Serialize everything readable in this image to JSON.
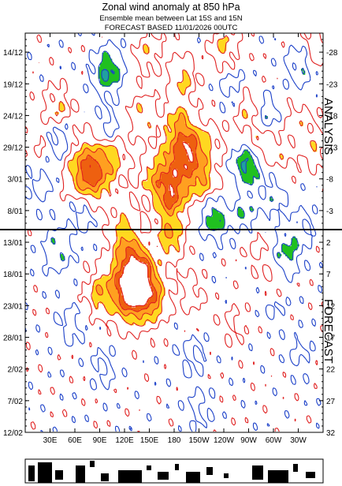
{
  "header": {
    "title": "Zonal wind anomaly at 850 hPa",
    "subtitle": "Ensemble mean between  Lat 15S and 15N",
    "forecast_line": "FORECAST  BASED 11/01/2026 00UTC"
  },
  "chart_data": {
    "type": "heatmap",
    "title": "Zonal wind anomaly at 850 hPa",
    "x_ticks": [
      "30E",
      "60E",
      "90E",
      "120E",
      "150E",
      "180",
      "150W",
      "120W",
      "90W",
      "60W",
      "30W"
    ],
    "x_tick_lon": [
      30,
      60,
      90,
      120,
      150,
      180,
      210,
      240,
      270,
      300,
      330
    ],
    "xlim": [
      0,
      360
    ],
    "y_ticks_left": [
      "14/12",
      "19/12",
      "24/12",
      "29/12",
      "3/01",
      "8/01",
      "13/01",
      "18/01",
      "23/01",
      "28/01",
      "2/02",
      "7/02",
      "12/02"
    ],
    "y_ticks_right": [
      "-28",
      "-23",
      "-18",
      "-13",
      "-8",
      "-3",
      "2",
      "7",
      "12",
      "17",
      "22",
      "27",
      "32"
    ],
    "ylim_days": [
      -31,
      32
    ],
    "forecast_start_day": 0,
    "section_labels": {
      "analysis": "ANALYSIS",
      "forecast": "FORECAST"
    },
    "contour_levels_positive": [
      1,
      3,
      5,
      7,
      9
    ],
    "contour_levels_negative": [
      -1,
      -3,
      -5
    ],
    "colors": {
      "pos_contour": "#e02020",
      "neg_contour": "#1a3fc8",
      "fill_3": "#ffd820",
      "fill_5": "#ffa020",
      "fill_7": "#ee6010",
      "fill_9": "#ffffff",
      "fill_neg3": "#20c020",
      "fill_neg5": "#20a0a0"
    },
    "anomaly_centers": [
      {
        "lon": 78,
        "day": -9,
        "value": 8.5
      },
      {
        "lon": 105,
        "day": -12,
        "value": 4
      },
      {
        "lon": 40,
        "day": -19,
        "value": 3
      },
      {
        "lon": 155,
        "day": -8,
        "value": 3.5
      },
      {
        "lon": 185,
        "day": -10,
        "value": 7
      },
      {
        "lon": 175,
        "day": -5,
        "value": 6
      },
      {
        "lon": 200,
        "day": -13,
        "value": 5
      },
      {
        "lon": 215,
        "day": -8,
        "value": 4
      },
      {
        "lon": 186,
        "day": -17,
        "value": 4
      },
      {
        "lon": 142,
        "day": -18,
        "value": 3
      },
      {
        "lon": 190,
        "day": -24,
        "value": 3.5
      },
      {
        "lon": 240,
        "day": -29,
        "value": 3.2
      },
      {
        "lon": 148,
        "day": -28,
        "value": 2.5
      },
      {
        "lon": 350,
        "day": -28,
        "value": 3
      },
      {
        "lon": 268,
        "day": -19,
        "value": 3
      },
      {
        "lon": 330,
        "day": -17,
        "value": 2
      },
      {
        "lon": 285,
        "day": -14,
        "value": 3
      },
      {
        "lon": 310,
        "day": -12,
        "value": 2
      },
      {
        "lon": 25,
        "day": -13,
        "value": 1.5
      },
      {
        "lon": 250,
        "day": -5,
        "value": 2
      },
      {
        "lon": 350,
        "day": -13,
        "value": 2.5
      },
      {
        "lon": 225,
        "day": -14,
        "value": 2
      },
      {
        "lon": 120,
        "day": -3,
        "value": 2
      },
      {
        "lon": 130,
        "day": 9,
        "value": 13
      },
      {
        "lon": 138,
        "day": 6,
        "value": 4
      },
      {
        "lon": 155,
        "day": 11,
        "value": 4
      },
      {
        "lon": 175,
        "day": 1,
        "value": 5
      },
      {
        "lon": 90,
        "day": 10,
        "value": 4
      },
      {
        "lon": 120,
        "day": 2,
        "value": 4
      },
      {
        "lon": 200,
        "day": 10,
        "value": 2
      },
      {
        "lon": 280,
        "day": 3,
        "value": 1.5
      },
      {
        "lon": 300,
        "day": 8,
        "value": 1.5
      },
      {
        "lon": 250,
        "day": 15,
        "value": 1.2
      },
      {
        "lon": 70,
        "day": -3,
        "value": -3
      },
      {
        "lon": 100,
        "day": -25,
        "value": -5.5
      },
      {
        "lon": 40,
        "day": -14,
        "value": -3.2
      },
      {
        "lon": 268,
        "day": -10,
        "value": -5.5
      },
      {
        "lon": 230,
        "day": -2,
        "value": -4.5
      },
      {
        "lon": 262,
        "day": -3,
        "value": -3.5
      },
      {
        "lon": 315,
        "day": 4,
        "value": -3.3
      },
      {
        "lon": 335,
        "day": -26,
        "value": -3.2
      },
      {
        "lon": 40,
        "day": 3,
        "value": -3
      },
      {
        "lon": 290,
        "day": -18,
        "value": -3
      },
      {
        "lon": 100,
        "day": -15,
        "value": -3
      },
      {
        "lon": 20,
        "day": -7,
        "value": -2
      },
      {
        "lon": 250,
        "day": -22,
        "value": -2
      },
      {
        "lon": 300,
        "day": -5,
        "value": -2
      },
      {
        "lon": 330,
        "day": 0,
        "value": -2
      },
      {
        "lon": 55,
        "day": 15,
        "value": -1.8
      },
      {
        "lon": 200,
        "day": 20,
        "value": -1.6
      },
      {
        "lon": 210,
        "day": 28,
        "value": -1.4
      },
      {
        "lon": 95,
        "day": 22,
        "value": -1.3
      },
      {
        "lon": 300,
        "day": 12,
        "value": -1.2
      },
      {
        "lon": 330,
        "day": 20,
        "value": -1.2
      }
    ]
  }
}
